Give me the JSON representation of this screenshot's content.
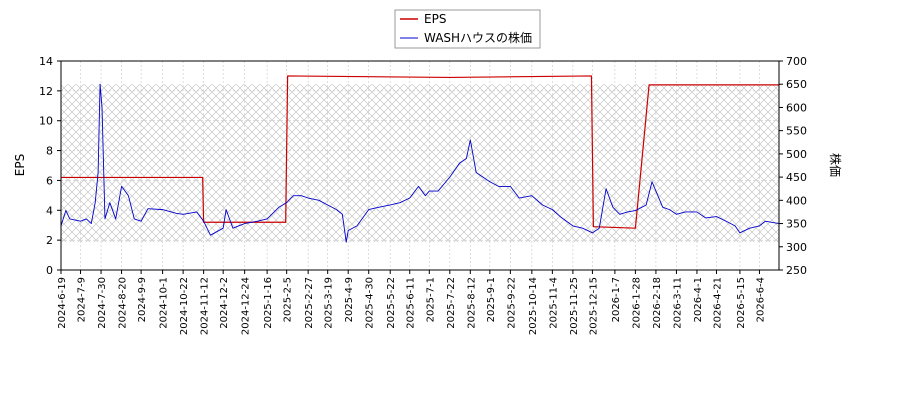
{
  "chart_data": {
    "type": "line",
    "title": "",
    "legend": {
      "placement": "top-center",
      "entries": [
        {
          "label": "EPS",
          "color": "#cc0000"
        },
        {
          "label": "WASHハウスの株価",
          "color": "#0000cc"
        }
      ]
    },
    "left_axis": {
      "label": "EPS",
      "min": 0,
      "max": 14,
      "ticks": [
        "0",
        "2",
        "4",
        "6",
        "8",
        "10",
        "12",
        "14"
      ]
    },
    "right_axis": {
      "label": "株価",
      "min": 250,
      "max": 700,
      "ticks": [
        "250",
        "300",
        "350",
        "400",
        "450",
        "500",
        "550",
        "600",
        "650",
        "700"
      ]
    },
    "x_axis": {
      "start": "2024-06-19",
      "end": "2026-06-24",
      "ticks": [
        "2024-6-19",
        "2024-7-9",
        "2024-7-30",
        "2024-8-20",
        "2024-9-9",
        "2024-10-1",
        "2024-10-22",
        "2024-11-12",
        "2024-12-2",
        "2024-12-24",
        "2025-1-16",
        "2025-2-5",
        "2025-2-27",
        "2025-3-19",
        "2025-4-9",
        "2025-4-30",
        "2025-5-22",
        "2025-6-11",
        "2025-7-1",
        "2025-7-22",
        "2025-8-12",
        "2025-9-1",
        "2025-9-22",
        "2025-10-14",
        "2025-11-4",
        "2025-11-25",
        "2025-12-15",
        "2026-1-7",
        "2026-1-28",
        "2026-2-18",
        "2026-3-11",
        "2026-4-1",
        "2026-4-21",
        "2026-5-15",
        "2026-6-4"
      ]
    },
    "grid": true,
    "hatched_region": "stock price range shaded with crosshatch",
    "series": [
      {
        "name": "EPS",
        "axis": "left",
        "color": "#cc0000",
        "points": [
          [
            "2024-06-19",
            6.2
          ],
          [
            "2024-11-11",
            6.2
          ],
          [
            "2024-11-12",
            3.2
          ],
          [
            "2025-02-04",
            3.2
          ],
          [
            "2025-02-06",
            13.0
          ],
          [
            "2025-07-22",
            12.9
          ],
          [
            "2025-12-14",
            13.0
          ],
          [
            "2025-12-16",
            2.9
          ],
          [
            "2026-01-28",
            2.8
          ],
          [
            "2026-02-11",
            12.4
          ],
          [
            "2026-06-24",
            12.4
          ]
        ]
      },
      {
        "name": "WASHハウスの株価",
        "axis": "right",
        "color": "#0000cc",
        "points": [
          [
            "2024-06-19",
            345
          ],
          [
            "2024-06-24",
            378
          ],
          [
            "2024-06-28",
            360
          ],
          [
            "2024-07-09",
            355
          ],
          [
            "2024-07-15",
            360
          ],
          [
            "2024-07-20",
            350
          ],
          [
            "2024-07-24",
            395
          ],
          [
            "2024-07-27",
            460
          ],
          [
            "2024-07-29",
            650
          ],
          [
            "2024-07-31",
            600
          ],
          [
            "2024-08-03",
            360
          ],
          [
            "2024-08-08",
            395
          ],
          [
            "2024-08-14",
            360
          ],
          [
            "2024-08-20",
            430
          ],
          [
            "2024-08-27",
            410
          ],
          [
            "2024-09-02",
            360
          ],
          [
            "2024-09-09",
            355
          ],
          [
            "2024-09-16",
            382
          ],
          [
            "2024-10-01",
            380
          ],
          [
            "2024-10-15",
            372
          ],
          [
            "2024-10-22",
            370
          ],
          [
            "2024-11-05",
            375
          ],
          [
            "2024-11-12",
            355
          ],
          [
            "2024-11-19",
            325
          ],
          [
            "2024-12-02",
            340
          ],
          [
            "2024-12-05",
            380
          ],
          [
            "2024-12-12",
            340
          ],
          [
            "2024-12-24",
            350
          ],
          [
            "2025-01-06",
            355
          ],
          [
            "2025-01-16",
            360
          ],
          [
            "2025-01-28",
            385
          ],
          [
            "2025-02-05",
            395
          ],
          [
            "2025-02-12",
            410
          ],
          [
            "2025-02-20",
            410
          ],
          [
            "2025-02-27",
            405
          ],
          [
            "2025-03-10",
            400
          ],
          [
            "2025-03-19",
            390
          ],
          [
            "2025-03-28",
            380
          ],
          [
            "2025-04-03",
            370
          ],
          [
            "2025-04-07",
            310
          ],
          [
            "2025-04-09",
            335
          ],
          [
            "2025-04-18",
            345
          ],
          [
            "2025-04-30",
            380
          ],
          [
            "2025-05-10",
            385
          ],
          [
            "2025-05-22",
            390
          ],
          [
            "2025-06-01",
            395
          ],
          [
            "2025-06-11",
            405
          ],
          [
            "2025-06-20",
            430
          ],
          [
            "2025-06-27",
            410
          ],
          [
            "2025-07-01",
            420
          ],
          [
            "2025-07-10",
            420
          ],
          [
            "2025-07-22",
            450
          ],
          [
            "2025-08-01",
            480
          ],
          [
            "2025-08-08",
            490
          ],
          [
            "2025-08-12",
            530
          ],
          [
            "2025-08-18",
            460
          ],
          [
            "2025-08-25",
            450
          ],
          [
            "2025-09-01",
            440
          ],
          [
            "2025-09-10",
            430
          ],
          [
            "2025-09-22",
            430
          ],
          [
            "2025-10-01",
            405
          ],
          [
            "2025-10-14",
            410
          ],
          [
            "2025-10-25",
            390
          ],
          [
            "2025-11-04",
            380
          ],
          [
            "2025-11-12",
            365
          ],
          [
            "2025-11-25",
            345
          ],
          [
            "2025-12-05",
            340
          ],
          [
            "2025-12-15",
            330
          ],
          [
            "2025-12-22",
            340
          ],
          [
            "2025-12-29",
            425
          ],
          [
            "2026-01-05",
            385
          ],
          [
            "2026-01-12",
            370
          ],
          [
            "2026-01-20",
            375
          ],
          [
            "2026-01-28",
            378
          ],
          [
            "2026-02-08",
            390
          ],
          [
            "2026-02-14",
            440
          ],
          [
            "2026-02-18",
            420
          ],
          [
            "2026-02-25",
            385
          ],
          [
            "2026-03-04",
            380
          ],
          [
            "2026-03-11",
            370
          ],
          [
            "2026-03-20",
            375
          ],
          [
            "2026-04-01",
            375
          ],
          [
            "2026-04-10",
            362
          ],
          [
            "2026-04-21",
            365
          ],
          [
            "2026-05-01",
            355
          ],
          [
            "2026-05-10",
            345
          ],
          [
            "2026-05-15",
            330
          ],
          [
            "2026-05-25",
            340
          ],
          [
            "2026-06-04",
            345
          ],
          [
            "2026-06-10",
            355
          ],
          [
            "2026-06-24",
            350
          ]
        ]
      }
    ]
  }
}
